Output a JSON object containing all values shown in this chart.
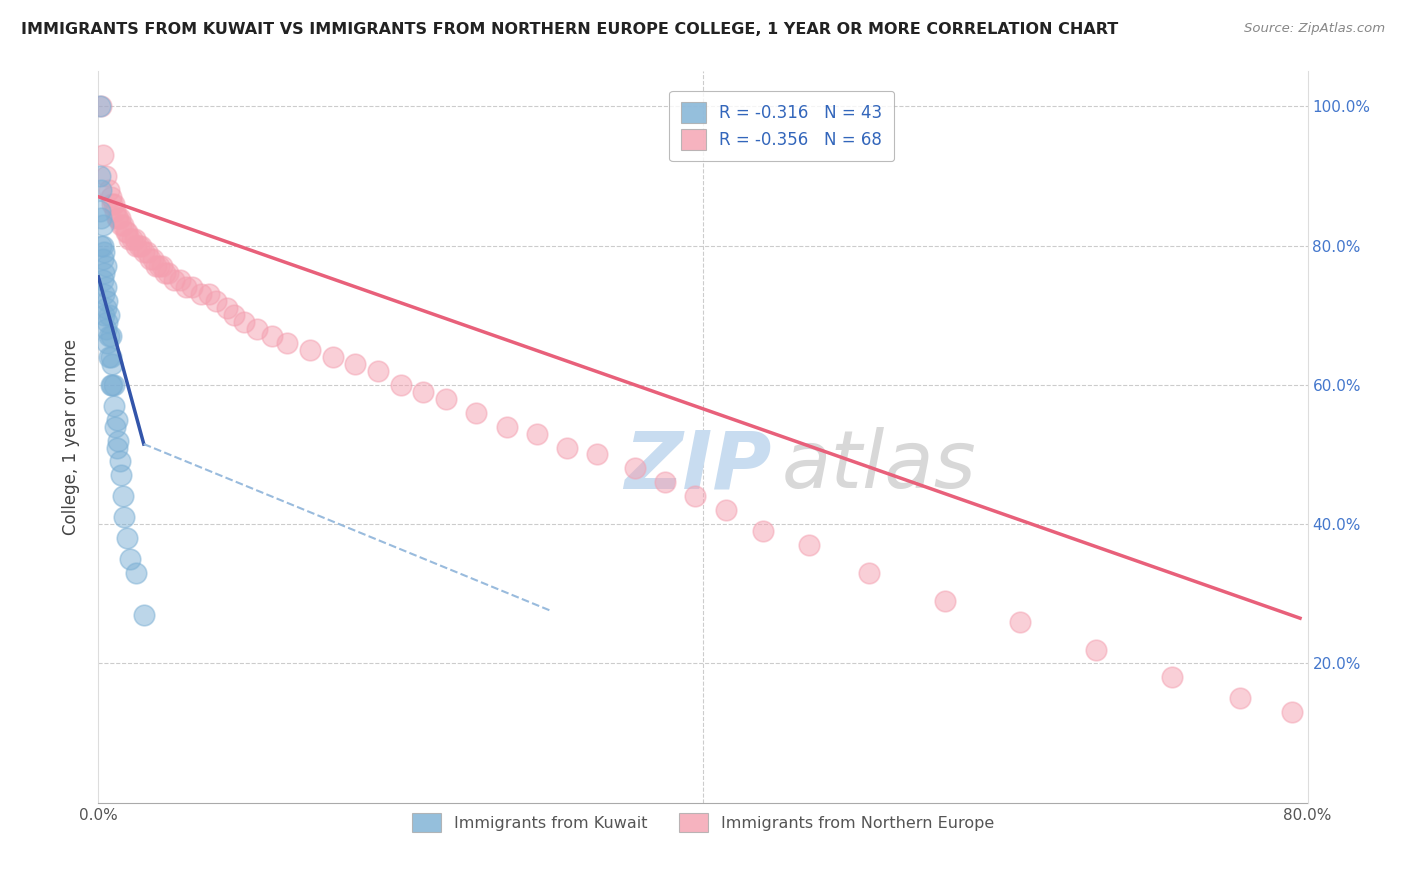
{
  "title": "IMMIGRANTS FROM KUWAIT VS IMMIGRANTS FROM NORTHERN EUROPE COLLEGE, 1 YEAR OR MORE CORRELATION CHART",
  "source": "Source: ZipAtlas.com",
  "ylabel": "College, 1 year or more",
  "legend_kuwait": "Immigrants from Kuwait",
  "legend_northern": "Immigrants from Northern Europe",
  "R_kuwait": -0.316,
  "N_kuwait": 43,
  "R_northern": -0.356,
  "N_northern": 68,
  "xlim": [
    0.0,
    0.8
  ],
  "ylim": [
    0.0,
    1.05
  ],
  "color_kuwait": "#7BAFD4",
  "color_northern": "#F4A0B0",
  "trendline_kuwait_color": "#3355AA",
  "trendline_northern_color": "#E8607A",
  "trendline_kuwait_dashed_color": "#99BBDD",
  "kuwait_x": [
    0.001,
    0.001,
    0.001,
    0.002,
    0.002,
    0.002,
    0.003,
    0.003,
    0.003,
    0.003,
    0.004,
    0.004,
    0.004,
    0.004,
    0.005,
    0.005,
    0.005,
    0.005,
    0.006,
    0.006,
    0.006,
    0.007,
    0.007,
    0.007,
    0.008,
    0.008,
    0.008,
    0.009,
    0.009,
    0.01,
    0.01,
    0.011,
    0.012,
    0.012,
    0.013,
    0.014,
    0.015,
    0.016,
    0.017,
    0.019,
    0.021,
    0.025,
    0.03
  ],
  "kuwait_y": [
    1.0,
    0.9,
    0.85,
    0.88,
    0.84,
    0.8,
    0.83,
    0.8,
    0.78,
    0.75,
    0.79,
    0.76,
    0.73,
    0.7,
    0.77,
    0.74,
    0.71,
    0.68,
    0.72,
    0.69,
    0.66,
    0.7,
    0.67,
    0.64,
    0.67,
    0.64,
    0.6,
    0.63,
    0.6,
    0.6,
    0.57,
    0.54,
    0.55,
    0.51,
    0.52,
    0.49,
    0.47,
    0.44,
    0.41,
    0.38,
    0.35,
    0.33,
    0.27
  ],
  "northern_x": [
    0.002,
    0.003,
    0.005,
    0.007,
    0.008,
    0.009,
    0.01,
    0.011,
    0.012,
    0.013,
    0.014,
    0.015,
    0.016,
    0.018,
    0.019,
    0.02,
    0.022,
    0.024,
    0.025,
    0.027,
    0.028,
    0.03,
    0.032,
    0.034,
    0.036,
    0.038,
    0.04,
    0.042,
    0.044,
    0.046,
    0.05,
    0.054,
    0.058,
    0.062,
    0.068,
    0.073,
    0.078,
    0.085,
    0.09,
    0.096,
    0.105,
    0.115,
    0.125,
    0.14,
    0.155,
    0.17,
    0.185,
    0.2,
    0.215,
    0.23,
    0.25,
    0.27,
    0.29,
    0.31,
    0.33,
    0.355,
    0.375,
    0.395,
    0.415,
    0.44,
    0.47,
    0.51,
    0.56,
    0.61,
    0.66,
    0.71,
    0.755,
    0.79
  ],
  "northern_y": [
    1.0,
    0.93,
    0.9,
    0.88,
    0.87,
    0.86,
    0.86,
    0.85,
    0.84,
    0.84,
    0.84,
    0.83,
    0.83,
    0.82,
    0.82,
    0.81,
    0.81,
    0.81,
    0.8,
    0.8,
    0.8,
    0.79,
    0.79,
    0.78,
    0.78,
    0.77,
    0.77,
    0.77,
    0.76,
    0.76,
    0.75,
    0.75,
    0.74,
    0.74,
    0.73,
    0.73,
    0.72,
    0.71,
    0.7,
    0.69,
    0.68,
    0.67,
    0.66,
    0.65,
    0.64,
    0.63,
    0.62,
    0.6,
    0.59,
    0.58,
    0.56,
    0.54,
    0.53,
    0.51,
    0.5,
    0.48,
    0.46,
    0.44,
    0.42,
    0.39,
    0.37,
    0.33,
    0.29,
    0.26,
    0.22,
    0.18,
    0.15,
    0.13
  ],
  "trendline_kuwait_x0": 0.0,
  "trendline_kuwait_y0": 0.755,
  "trendline_kuwait_x1": 0.03,
  "trendline_kuwait_y1": 0.515,
  "trendline_kuwait_dash_x0": 0.03,
  "trendline_kuwait_dash_y0": 0.515,
  "trendline_kuwait_dash_x1": 0.3,
  "trendline_kuwait_dash_y1": 0.275,
  "trendline_northern_x0": 0.0,
  "trendline_northern_y0": 0.87,
  "trendline_northern_x1": 0.795,
  "trendline_northern_y1": 0.265
}
